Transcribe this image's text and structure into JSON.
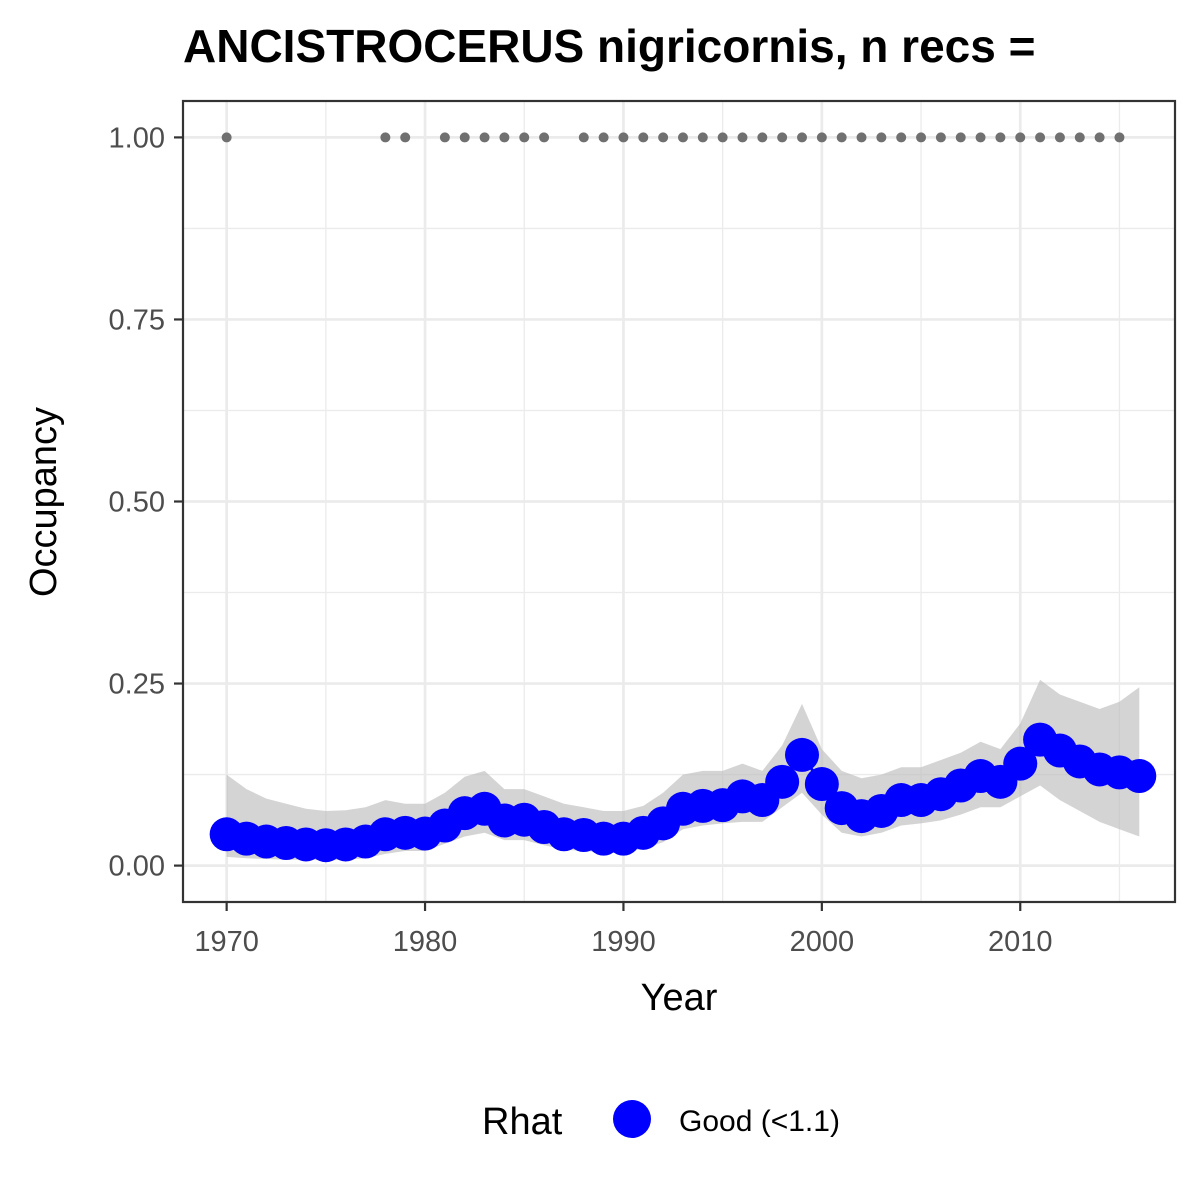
{
  "chart_data": {
    "type": "line",
    "title": "ANCISTROCERUS nigricornis, n recs = ",
    "xlabel": "Year",
    "ylabel": "Occupancy",
    "xlim": [
      1967.8,
      2017.8
    ],
    "ylim": [
      -0.05,
      1.05
    ],
    "x_ticks": [
      1970,
      1980,
      1990,
      2000,
      2010
    ],
    "y_ticks": [
      0.0,
      0.25,
      0.5,
      0.75,
      1.0
    ],
    "x_tick_labels": [
      "1970",
      "1980",
      "1990",
      "2000",
      "2010"
    ],
    "y_tick_labels": [
      "0.00",
      "0.25",
      "0.50",
      "0.75",
      "1.00"
    ],
    "grid": true,
    "legend_position": "bottom",
    "legend": {
      "title": "Rhat",
      "label": "Good (<1.1)"
    },
    "colors": {
      "series": "#0000ff",
      "ribbon": "#bdbdbd",
      "record_points": "#707070",
      "grid": "#ebebeb",
      "panel_border": "#333333",
      "tick_text": "#4d4d4d"
    },
    "series": [
      {
        "name": "Good (<1.1)",
        "x": [
          1970,
          1971,
          1972,
          1973,
          1974,
          1975,
          1976,
          1977,
          1978,
          1979,
          1980,
          1981,
          1982,
          1983,
          1984,
          1985,
          1986,
          1987,
          1988,
          1989,
          1990,
          1991,
          1992,
          1993,
          1994,
          1995,
          1996,
          1997,
          1998,
          1999,
          2000,
          2001,
          2002,
          2003,
          2004,
          2005,
          2006,
          2007,
          2008,
          2009,
          2010,
          2011,
          2012,
          2013,
          2014,
          2015,
          2016
        ],
        "y": [
          0.043,
          0.037,
          0.033,
          0.031,
          0.029,
          0.028,
          0.029,
          0.033,
          0.043,
          0.045,
          0.044,
          0.055,
          0.072,
          0.078,
          0.062,
          0.063,
          0.053,
          0.043,
          0.042,
          0.037,
          0.037,
          0.045,
          0.058,
          0.078,
          0.082,
          0.083,
          0.095,
          0.09,
          0.115,
          0.152,
          0.112,
          0.079,
          0.068,
          0.075,
          0.09,
          0.09,
          0.098,
          0.11,
          0.123,
          0.115,
          0.14,
          0.173,
          0.158,
          0.143,
          0.132,
          0.128,
          0.123
        ],
        "lower": [
          0.012,
          0.01,
          0.009,
          0.008,
          0.008,
          0.007,
          0.008,
          0.01,
          0.016,
          0.02,
          0.02,
          0.03,
          0.04,
          0.045,
          0.035,
          0.035,
          0.028,
          0.022,
          0.02,
          0.018,
          0.018,
          0.023,
          0.032,
          0.05,
          0.055,
          0.058,
          0.06,
          0.06,
          0.08,
          0.1,
          0.07,
          0.045,
          0.04,
          0.045,
          0.055,
          0.058,
          0.062,
          0.07,
          0.08,
          0.08,
          0.095,
          0.11,
          0.09,
          0.075,
          0.06,
          0.05,
          0.04
        ],
        "upper": [
          0.125,
          0.105,
          0.092,
          0.085,
          0.078,
          0.075,
          0.076,
          0.08,
          0.09,
          0.085,
          0.085,
          0.1,
          0.122,
          0.13,
          0.105,
          0.105,
          0.095,
          0.085,
          0.08,
          0.075,
          0.075,
          0.082,
          0.1,
          0.125,
          0.13,
          0.13,
          0.14,
          0.13,
          0.165,
          0.222,
          0.16,
          0.13,
          0.12,
          0.125,
          0.135,
          0.135,
          0.145,
          0.155,
          0.17,
          0.16,
          0.195,
          0.255,
          0.235,
          0.225,
          0.215,
          0.225,
          0.245
        ]
      }
    ],
    "record_years": [
      1970,
      1978,
      1979,
      1981,
      1982,
      1983,
      1984,
      1985,
      1986,
      1988,
      1989,
      1990,
      1991,
      1992,
      1993,
      1994,
      1995,
      1996,
      1997,
      1998,
      1999,
      2000,
      2001,
      2002,
      2003,
      2004,
      2005,
      2006,
      2007,
      2008,
      2009,
      2010,
      2011,
      2012,
      2013,
      2014,
      2015
    ],
    "record_value": 1.0
  }
}
